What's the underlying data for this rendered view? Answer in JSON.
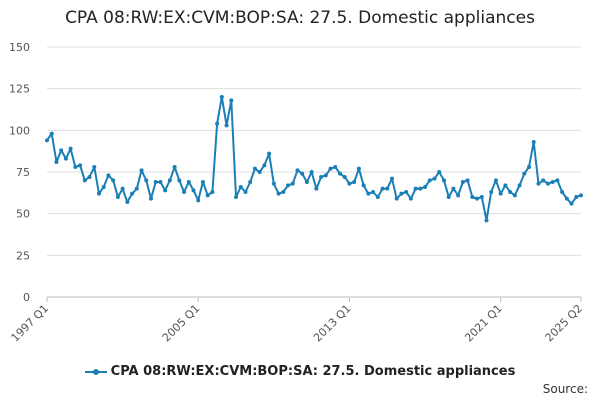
{
  "title": "CPA 08:RW:EX:CVM:BOP:SA: 27.5. Domestic appliances",
  "source_label": "Source:",
  "chart_data": {
    "type": "line",
    "title": "CPA 08:RW:EX:CVM:BOP:SA: 27.5. Domestic appliances",
    "xlabel": "",
    "ylabel": "",
    "ylim": [
      0,
      150
    ],
    "yticks": [
      0,
      25,
      50,
      75,
      100,
      125,
      150
    ],
    "xtick_labels": [
      "1997 Q1",
      "2005 Q1",
      "2013 Q1",
      "2021 Q1",
      "2025 Q2"
    ],
    "grid": "horizontal",
    "legend_position": "bottom",
    "color": "#1a7fb6",
    "series": [
      {
        "name": "CPA 08:RW:EX:CVM:BOP:SA: 27.5. Domestic appliances",
        "x": [
          "1997 Q1",
          "1997 Q2",
          "1997 Q3",
          "1997 Q4",
          "1998 Q1",
          "1998 Q2",
          "1998 Q3",
          "1998 Q4",
          "1999 Q1",
          "1999 Q2",
          "1999 Q3",
          "1999 Q4",
          "2000 Q1",
          "2000 Q2",
          "2000 Q3",
          "2000 Q4",
          "2001 Q1",
          "2001 Q2",
          "2001 Q3",
          "2001 Q4",
          "2002 Q1",
          "2002 Q2",
          "2002 Q3",
          "2002 Q4",
          "2003 Q1",
          "2003 Q2",
          "2003 Q3",
          "2003 Q4",
          "2004 Q1",
          "2004 Q2",
          "2004 Q3",
          "2004 Q4",
          "2005 Q1",
          "2005 Q2",
          "2005 Q3",
          "2005 Q4",
          "2006 Q1",
          "2006 Q2",
          "2006 Q3",
          "2006 Q4",
          "2007 Q1",
          "2007 Q2",
          "2007 Q3",
          "2007 Q4",
          "2008 Q1",
          "2008 Q2",
          "2008 Q3",
          "2008 Q4",
          "2009 Q1",
          "2009 Q2",
          "2009 Q3",
          "2009 Q4",
          "2010 Q1",
          "2010 Q2",
          "2010 Q3",
          "2010 Q4",
          "2011 Q1",
          "2011 Q2",
          "2011 Q3",
          "2011 Q4",
          "2012 Q1",
          "2012 Q2",
          "2012 Q3",
          "2012 Q4",
          "2013 Q1",
          "2013 Q2",
          "2013 Q3",
          "2013 Q4",
          "2014 Q1",
          "2014 Q2",
          "2014 Q3",
          "2014 Q4",
          "2015 Q1",
          "2015 Q2",
          "2015 Q3",
          "2015 Q4",
          "2016 Q1",
          "2016 Q2",
          "2016 Q3",
          "2016 Q4",
          "2017 Q1",
          "2017 Q2",
          "2017 Q3",
          "2017 Q4",
          "2018 Q1",
          "2018 Q2",
          "2018 Q3",
          "2018 Q4",
          "2019 Q1",
          "2019 Q2",
          "2019 Q3",
          "2019 Q4",
          "2020 Q1",
          "2020 Q2",
          "2020 Q3",
          "2020 Q4",
          "2021 Q1",
          "2021 Q2",
          "2021 Q3",
          "2021 Q4",
          "2022 Q1",
          "2022 Q2",
          "2022 Q3",
          "2022 Q4",
          "2023 Q1",
          "2023 Q2",
          "2023 Q3",
          "2023 Q4",
          "2024 Q1",
          "2024 Q2",
          "2024 Q3",
          "2024 Q4",
          "2025 Q1",
          "2025 Q2"
        ],
        "values": [
          94,
          98,
          81,
          88,
          83,
          89,
          78,
          79,
          70,
          72,
          78,
          62,
          66,
          73,
          70,
          60,
          65,
          57,
          62,
          65,
          76,
          70,
          59,
          69,
          69,
          64,
          70,
          78,
          70,
          63,
          69,
          64,
          58,
          69,
          61,
          63,
          104,
          120,
          103,
          118,
          60,
          66,
          63,
          69,
          77,
          75,
          79,
          86,
          68,
          62,
          63,
          67,
          68,
          76,
          74,
          69,
          75,
          65,
          72,
          73,
          77,
          78,
          74,
          72,
          68,
          69,
          77,
          67,
          62,
          63,
          60,
          65,
          65,
          71,
          59,
          62,
          63,
          59,
          65,
          65,
          66,
          70,
          71,
          75,
          70,
          60,
          65,
          61,
          69,
          70,
          60,
          59,
          60,
          46,
          63,
          70,
          62,
          67,
          63,
          61,
          67,
          74,
          78,
          93,
          68,
          70,
          68,
          69,
          70,
          63,
          59,
          56,
          60,
          61
        ]
      }
    ]
  }
}
